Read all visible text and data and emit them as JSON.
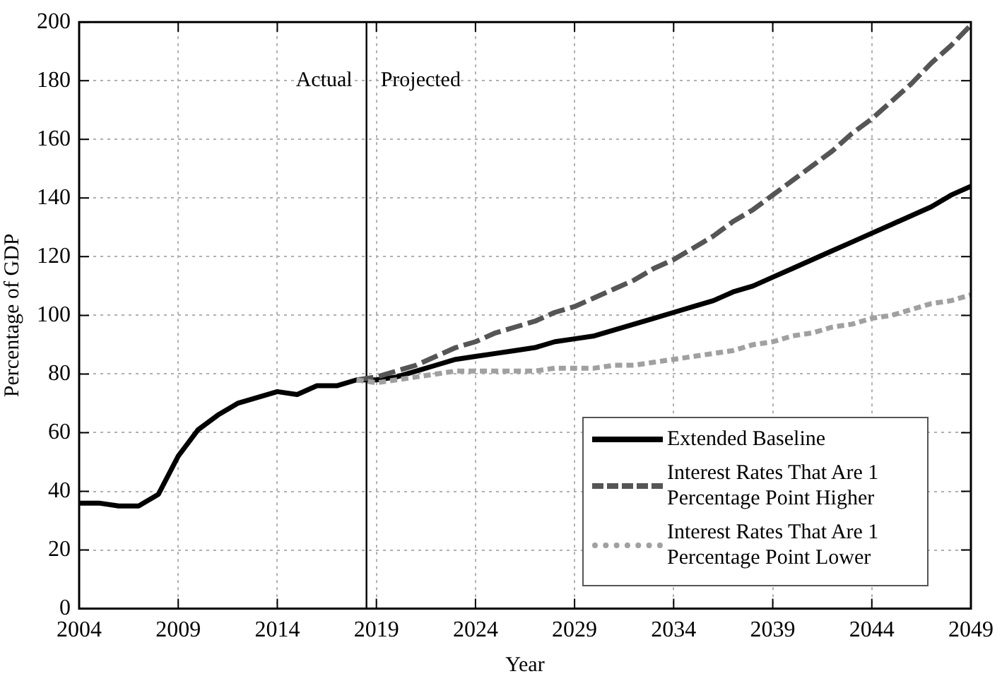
{
  "chart_data": {
    "type": "line",
    "xlabel": "Year",
    "ylabel": "Percentage of GDP",
    "xlim": [
      2004,
      2049
    ],
    "xticks": [
      2004,
      2009,
      2014,
      2019,
      2024,
      2029,
      2034,
      2039,
      2044,
      2049
    ],
    "ylim": [
      0,
      200
    ],
    "yticks": [
      0,
      20,
      40,
      60,
      80,
      100,
      120,
      140,
      160,
      180,
      200
    ],
    "grid": true,
    "legend": "bottom right",
    "marker": "none",
    "ref_lines": [
      {
        "axis": "x",
        "value": 2018.5,
        "color": "#000000"
      }
    ],
    "annotations": [
      "Actual",
      "Projected"
    ],
    "series": [
      {
        "name": "Extended Baseline",
        "color": "#000000",
        "line_style": "solid",
        "x": [
          2004,
          2005,
          2006,
          2007,
          2008,
          2009,
          2010,
          2011,
          2012,
          2013,
          2014,
          2015,
          2016,
          2017,
          2018,
          2019,
          2020,
          2021,
          2022,
          2023,
          2024,
          2025,
          2026,
          2027,
          2028,
          2029,
          2030,
          2031,
          2032,
          2033,
          2034,
          2035,
          2036,
          2037,
          2038,
          2039,
          2040,
          2041,
          2042,
          2043,
          2044,
          2045,
          2046,
          2047,
          2048,
          2049
        ],
        "values": [
          36,
          36,
          35,
          35,
          39,
          52,
          61,
          66,
          70,
          72,
          74,
          73,
          76,
          76,
          78,
          78,
          79,
          81,
          83,
          85,
          86,
          87,
          88,
          89,
          91,
          92,
          93,
          95,
          97,
          99,
          101,
          103,
          105,
          108,
          110,
          113,
          116,
          119,
          122,
          125,
          128,
          131,
          134,
          137,
          141,
          144
        ]
      },
      {
        "name": "Interest Rates That Are 1 Percentage Point Higher",
        "color": "#555555",
        "line_style": "dashed",
        "x": [
          2018,
          2019,
          2020,
          2021,
          2022,
          2023,
          2024,
          2025,
          2026,
          2027,
          2028,
          2029,
          2030,
          2031,
          2032,
          2033,
          2034,
          2035,
          2036,
          2037,
          2038,
          2039,
          2040,
          2041,
          2042,
          2043,
          2044,
          2045,
          2046,
          2047,
          2048,
          2049
        ],
        "values": [
          78,
          79,
          81,
          83,
          86,
          89,
          91,
          94,
          96,
          98,
          101,
          103,
          106,
          109,
          112,
          116,
          119,
          123,
          127,
          132,
          136,
          141,
          146,
          151,
          156,
          162,
          167,
          173,
          179,
          186,
          192,
          199
        ]
      },
      {
        "name": "Interest Rates That Are 1 Percentage Point Lower",
        "color": "#a0a0a0",
        "line_style": "dotted",
        "x": [
          2018,
          2019,
          2020,
          2021,
          2022,
          2023,
          2024,
          2025,
          2026,
          2027,
          2028,
          2029,
          2030,
          2031,
          2032,
          2033,
          2034,
          2035,
          2036,
          2037,
          2038,
          2039,
          2040,
          2041,
          2042,
          2043,
          2044,
          2045,
          2046,
          2047,
          2048,
          2049
        ],
        "values": [
          78,
          77,
          78,
          79,
          80,
          81,
          81,
          81,
          81,
          81,
          82,
          82,
          82,
          83,
          83,
          84,
          85,
          86,
          87,
          88,
          90,
          91,
          93,
          94,
          96,
          97,
          99,
          100,
          102,
          104,
          105,
          107
        ]
      }
    ]
  }
}
